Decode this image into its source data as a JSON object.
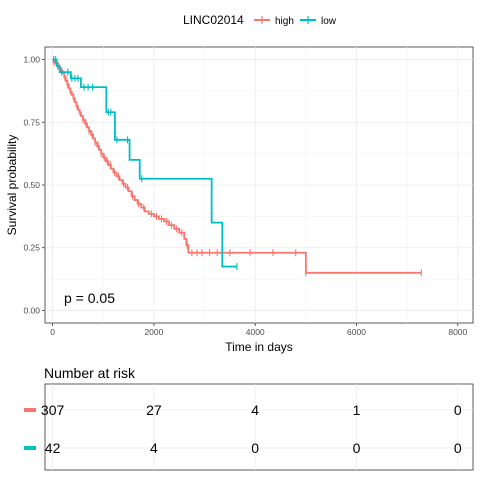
{
  "chart_data": {
    "type": "line",
    "subtype": "kaplan-meier",
    "legend": {
      "title": "LINC02014",
      "placement": "top",
      "entries": [
        "high",
        "low"
      ]
    },
    "xlabel": "Time in days",
    "ylabel": "Survival probability",
    "xlim": [
      -150,
      8300
    ],
    "ylim": [
      -0.05,
      1.05
    ],
    "x_ticks": [
      0,
      2000,
      4000,
      6000,
      8000
    ],
    "y_ticks": [
      0.0,
      0.25,
      0.5,
      0.75,
      1.0
    ],
    "x_tick_labels": [
      "0",
      "2000",
      "4000",
      "6000",
      "8000"
    ],
    "y_tick_labels": [
      "0.00",
      "0.25",
      "0.50",
      "0.75",
      "1.00"
    ],
    "grid": true,
    "annotation": "p = 0.05",
    "series": [
      {
        "name": "high",
        "color": "#F8766D",
        "steps": [
          [
            0,
            1.0
          ],
          [
            20,
            0.99
          ],
          [
            60,
            0.985
          ],
          [
            100,
            0.975
          ],
          [
            140,
            0.965
          ],
          [
            170,
            0.955
          ],
          [
            200,
            0.945
          ],
          [
            230,
            0.93
          ],
          [
            260,
            0.915
          ],
          [
            290,
            0.9
          ],
          [
            320,
            0.885
          ],
          [
            350,
            0.87
          ],
          [
            380,
            0.86
          ],
          [
            410,
            0.845
          ],
          [
            440,
            0.83
          ],
          [
            470,
            0.815
          ],
          [
            500,
            0.8
          ],
          [
            530,
            0.79
          ],
          [
            560,
            0.775
          ],
          [
            600,
            0.76
          ],
          [
            640,
            0.745
          ],
          [
            680,
            0.73
          ],
          [
            720,
            0.715
          ],
          [
            760,
            0.7
          ],
          [
            800,
            0.685
          ],
          [
            840,
            0.67
          ],
          [
            880,
            0.655
          ],
          [
            920,
            0.64
          ],
          [
            960,
            0.625
          ],
          [
            1000,
            0.61
          ],
          [
            1050,
            0.595
          ],
          [
            1100,
            0.58
          ],
          [
            1150,
            0.565
          ],
          [
            1200,
            0.55
          ],
          [
            1260,
            0.535
          ],
          [
            1320,
            0.52
          ],
          [
            1380,
            0.505
          ],
          [
            1440,
            0.49
          ],
          [
            1500,
            0.475
          ],
          [
            1560,
            0.455
          ],
          [
            1620,
            0.44
          ],
          [
            1680,
            0.425
          ],
          [
            1750,
            0.41
          ],
          [
            1820,
            0.395
          ],
          [
            1900,
            0.385
          ],
          [
            2000,
            0.375
          ],
          [
            2100,
            0.365
          ],
          [
            2200,
            0.355
          ],
          [
            2300,
            0.34
          ],
          [
            2400,
            0.325
          ],
          [
            2500,
            0.31
          ],
          [
            2600,
            0.285
          ],
          [
            2640,
            0.26
          ],
          [
            2680,
            0.23
          ],
          [
            5000,
            0.15
          ]
        ],
        "end_time": 7280,
        "censor_times": [
          30,
          80,
          120,
          180,
          240,
          300,
          360,
          420,
          480,
          540,
          600,
          660,
          720,
          780,
          840,
          900,
          960,
          1020,
          1080,
          1140,
          1220,
          1300,
          1400,
          1480,
          1580,
          1700,
          1800,
          1950,
          2050,
          2150,
          2250,
          2350,
          2450,
          2550,
          2660,
          2750,
          2850,
          2950,
          3100,
          3250,
          3500,
          3900,
          4350,
          4800,
          5000,
          7280
        ]
      },
      {
        "name": "low",
        "color": "#00BFC4",
        "steps": [
          [
            0,
            1.0
          ],
          [
            80,
            0.975
          ],
          [
            140,
            0.95
          ],
          [
            360,
            0.925
          ],
          [
            560,
            0.89
          ],
          [
            1060,
            0.79
          ],
          [
            1230,
            0.68
          ],
          [
            1520,
            0.6
          ],
          [
            1720,
            0.525
          ],
          [
            3140,
            0.35
          ],
          [
            3350,
            0.175
          ]
        ],
        "end_time": 3640,
        "censor_times": [
          20,
          60,
          100,
          180,
          300,
          380,
          440,
          500,
          620,
          700,
          790,
          1100,
          1150,
          1270,
          1480,
          1760,
          3640
        ]
      }
    ]
  },
  "risk_table": {
    "title": "Number at risk",
    "times": [
      0,
      2000,
      4000,
      6000,
      8000
    ],
    "rows": [
      {
        "name": "high",
        "color": "#F8766D",
        "values": [
          "307",
          "27",
          "4",
          "1",
          "0"
        ]
      },
      {
        "name": "low",
        "color": "#00BFC4",
        "values": [
          "42",
          "4",
          "0",
          "0",
          "0"
        ]
      }
    ]
  }
}
